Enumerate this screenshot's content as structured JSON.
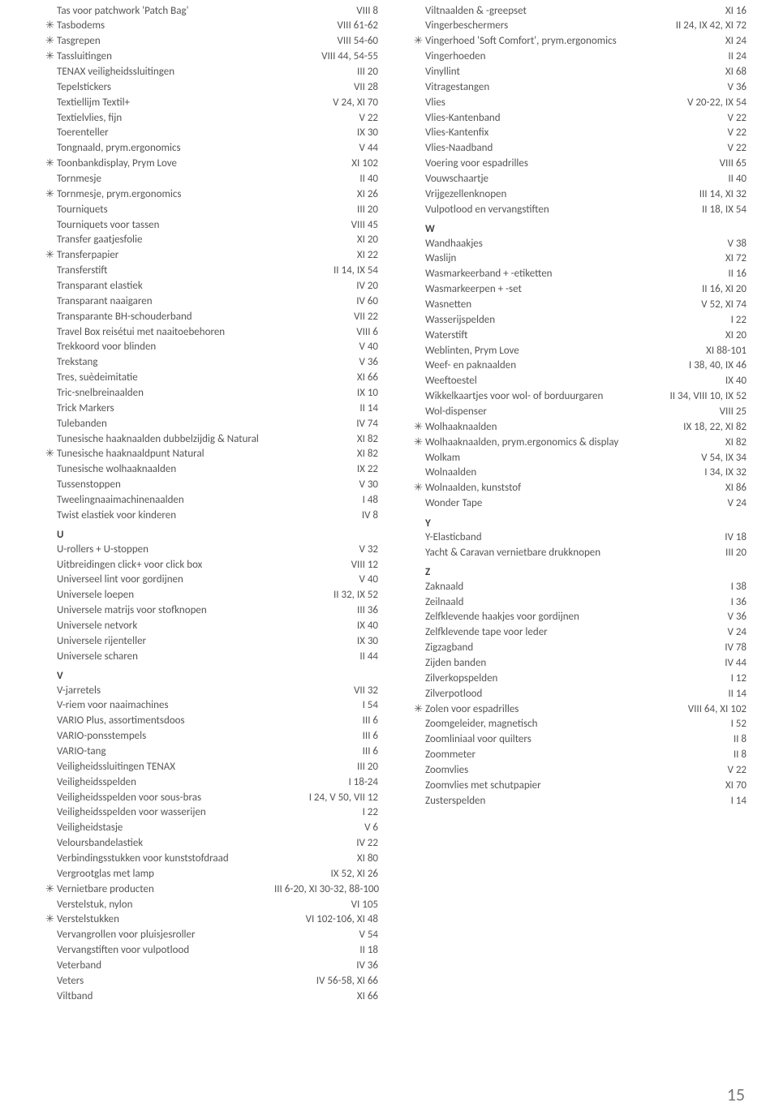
{
  "page_number": "15",
  "asterisk_glyph": "✳",
  "columns": [
    {
      "items": [
        {
          "m": "",
          "l": "Tas voor patchwork 'Patch Bag'",
          "r": "VIII 8"
        },
        {
          "m": "*",
          "l": "Tasbodems",
          "r": "VIII 61-62"
        },
        {
          "m": "*",
          "l": "Tasgrepen",
          "r": "VIII 54-60"
        },
        {
          "m": "*",
          "l": "Tassluitingen",
          "r": "VIII 44, 54-55"
        },
        {
          "m": "",
          "l": "TENAX veiligheidssluitingen",
          "r": "III 20"
        },
        {
          "m": "",
          "l": "Tepelstickers",
          "r": "VII 28"
        },
        {
          "m": "",
          "l": "Textiellijm Textil+",
          "r": "V 24, XI 70"
        },
        {
          "m": "",
          "l": "Textielvlies, fijn",
          "r": "V 22"
        },
        {
          "m": "",
          "l": "Toerenteller",
          "r": "IX 30"
        },
        {
          "m": "",
          "l": "Tongnaald, prym.ergonomics",
          "r": "V 44"
        },
        {
          "m": "*",
          "l": "Toonbankdisplay, Prym Love",
          "r": "XI 102"
        },
        {
          "m": "",
          "l": "Tornmesje",
          "r": "II 40"
        },
        {
          "m": "*",
          "l": "Tornmesje, prym.ergonomics",
          "r": "XI 26"
        },
        {
          "m": "",
          "l": "Tourniquets",
          "r": "III 20"
        },
        {
          "m": "",
          "l": "Tourniquets voor tassen",
          "r": "VIII 45"
        },
        {
          "m": "",
          "l": "Transfer gaatjesfolie",
          "r": "XI 20"
        },
        {
          "m": "*",
          "l": "Transferpapier",
          "r": "XI 22"
        },
        {
          "m": "",
          "l": "Transferstift",
          "r": "II 14, IX 54"
        },
        {
          "m": "",
          "l": "Transparant elastiek",
          "r": "IV 20"
        },
        {
          "m": "",
          "l": "Transparant naaigaren",
          "r": "IV 60"
        },
        {
          "m": "",
          "l": "Transparante BH-schouderband",
          "r": "VII 22"
        },
        {
          "m": "",
          "l": "Travel Box reisétui met naaitoebehoren",
          "r": "VIII 6"
        },
        {
          "m": "",
          "l": "Trekkoord voor blinden",
          "r": "V 40"
        },
        {
          "m": "",
          "l": "Trekstang",
          "r": "V 36"
        },
        {
          "m": "",
          "l": "Tres, suèdeimitatie",
          "r": "XI 66"
        },
        {
          "m": "",
          "l": "Tric-snelbreinaalden",
          "r": "IX 10"
        },
        {
          "m": "",
          "l": "Trick Markers",
          "r": "II 14"
        },
        {
          "m": "",
          "l": "Tulebanden",
          "r": "IV 74"
        },
        {
          "m": "",
          "l": "Tunesische haaknaalden dubbelzijdig & Natural",
          "r": "XI 82"
        },
        {
          "m": "*",
          "l": "Tunesische haaknaaldpunt Natural",
          "r": "XI 82"
        },
        {
          "m": "",
          "l": "Tunesische wolhaaknaalden",
          "r": "IX 22"
        },
        {
          "m": "",
          "l": "Tussenstoppen",
          "r": "V 30"
        },
        {
          "m": "",
          "l": "Tweelingnaaimachinenaalden",
          "r": "I 48"
        },
        {
          "m": "",
          "l": "Twist elastiek voor kinderen",
          "r": "IV 8"
        },
        {
          "section": "U"
        },
        {
          "m": "",
          "l": "U-rollers + U-stoppen",
          "r": "V 32"
        },
        {
          "m": "",
          "l": "Uitbreidingen click+ voor click box",
          "r": "VIII 12"
        },
        {
          "m": "",
          "l": "Universeel lint voor gordijnen",
          "r": "V 40"
        },
        {
          "m": "",
          "l": "Universele loepen",
          "r": "II 32, IX 52"
        },
        {
          "m": "",
          "l": "Universele matrijs voor stofknopen",
          "r": "III 36"
        },
        {
          "m": "",
          "l": "Universele netvork",
          "r": "IX 40"
        },
        {
          "m": "",
          "l": "Universele rijenteller",
          "r": "IX 30"
        },
        {
          "m": "",
          "l": "Universele scharen",
          "r": "II 44"
        },
        {
          "section": "V"
        },
        {
          "m": "",
          "l": "V-jarretels",
          "r": "VII 32"
        },
        {
          "m": "",
          "l": "V-riem voor naaimachines",
          "r": "I 54"
        },
        {
          "m": "",
          "l": "VARIO Plus, assortimentsdoos",
          "r": "III 6"
        },
        {
          "m": "",
          "l": "VARIO-ponsstempels",
          "r": "III 6"
        },
        {
          "m": "",
          "l": "VARIO-tang",
          "r": "III 6"
        },
        {
          "m": "",
          "l": "Veiligheidssluitingen TENAX",
          "r": "III 20"
        },
        {
          "m": "",
          "l": "Veiligheidsspelden",
          "r": "I 18-24"
        },
        {
          "m": "",
          "l": "Veiligheidsspelden voor sous-bras",
          "r": "I 24, V 50, VII 12"
        },
        {
          "m": "",
          "l": "Veiligheidsspelden voor wasserijen",
          "r": "I 22"
        },
        {
          "m": "",
          "l": "Veiligheidstasje",
          "r": "V 6"
        },
        {
          "m": "",
          "l": "Veloursbandelastiek",
          "r": "IV 22"
        },
        {
          "m": "",
          "l": "Verbindingsstukken voor kunststofdraad",
          "r": "XI 80"
        },
        {
          "m": "",
          "l": "Vergrootglas met lamp",
          "r": "IX 52, XI 26"
        },
        {
          "m": "*",
          "l": "Vernietbare producten",
          "r": "III 6-20, XI 30-32, 88-100"
        },
        {
          "m": "",
          "l": "Verstelstuk, nylon",
          "r": "VI 105"
        },
        {
          "m": "*",
          "l": "Verstelstukken",
          "r": "VI 102-106, XI 48"
        },
        {
          "m": "",
          "l": "Vervangrollen voor pluisjesroller",
          "r": "V 54"
        },
        {
          "m": "",
          "l": "Vervangstiften voor vulpotlood",
          "r": "II 18"
        },
        {
          "m": "",
          "l": "Veterband",
          "r": "IV 36"
        },
        {
          "m": "",
          "l": "Veters",
          "r": "IV 56-58, XI 66"
        },
        {
          "m": "",
          "l": "Viltband",
          "r": "XI 66"
        }
      ]
    },
    {
      "items": [
        {
          "m": "",
          "l": "Viltnaalden & -greepset",
          "r": "XI 16"
        },
        {
          "m": "",
          "l": "Vingerbeschermers",
          "r": "II 24, IX 42, XI 72"
        },
        {
          "m": "*",
          "l": "Vingerhoed 'Soft Comfort', prym.ergonomics",
          "r": "XI 24"
        },
        {
          "m": "",
          "l": "Vingerhoeden",
          "r": "II 24"
        },
        {
          "m": "",
          "l": "Vinyllint",
          "r": "XI 68"
        },
        {
          "m": "",
          "l": "Vitragestangen",
          "r": "V 36"
        },
        {
          "m": "",
          "l": "Vlies",
          "r": "V 20-22, IX 54"
        },
        {
          "m": "",
          "l": "Vlies-Kantenband",
          "r": "V 22"
        },
        {
          "m": "",
          "l": "Vlies-Kantenfix",
          "r": "V 22"
        },
        {
          "m": "",
          "l": "Vlies-Naadband",
          "r": "V 22"
        },
        {
          "m": "",
          "l": "Voering voor espadrilles",
          "r": "VIII 65"
        },
        {
          "m": "",
          "l": "Vouwschaartje",
          "r": "II 40"
        },
        {
          "m": "",
          "l": "Vrijgezellenknopen",
          "r": "III 14, XI 32"
        },
        {
          "m": "",
          "l": "Vulpotlood en vervangstiften",
          "r": "II 18, IX 54"
        },
        {
          "section": "W"
        },
        {
          "m": "",
          "l": "Wandhaakjes",
          "r": "V 38"
        },
        {
          "m": "",
          "l": "Waslijn",
          "r": "XI 72"
        },
        {
          "m": "",
          "l": "Wasmarkeerband + -etiketten",
          "r": "II 16"
        },
        {
          "m": "",
          "l": "Wasmarkeerpen + -set",
          "r": "II 16, XI 20"
        },
        {
          "m": "",
          "l": "Wasnetten",
          "r": "V 52, XI 74"
        },
        {
          "m": "",
          "l": "Wasserijspelden",
          "r": "I 22"
        },
        {
          "m": "",
          "l": "Waterstift",
          "r": "XI 20"
        },
        {
          "m": "",
          "l": "Weblinten, Prym Love",
          "r": "XI 88-101"
        },
        {
          "m": "",
          "l": "Weef- en paknaalden",
          "r": "I 38, 40, IX 46"
        },
        {
          "m": "",
          "l": "Weeftoestel",
          "r": "IX 40"
        },
        {
          "m": "",
          "l": "Wikkelkaartjes voor wol- of borduurgaren",
          "r": "II 34, VIII 10, IX 52"
        },
        {
          "m": "",
          "l": "Wol-dispenser",
          "r": "VIII 25"
        },
        {
          "m": "*",
          "l": "Wolhaaknaalden",
          "r": "IX 18, 22, XI 82"
        },
        {
          "m": "*",
          "l": "Wolhaaknaalden, prym.ergonomics & display",
          "r": "XI 82"
        },
        {
          "m": "",
          "l": "Wolkam",
          "r": "V 54, IX 34"
        },
        {
          "m": "",
          "l": "Wolnaalden",
          "r": "I 34, IX 32"
        },
        {
          "m": "*",
          "l": "Wolnaalden, kunststof",
          "r": "XI 86"
        },
        {
          "m": "",
          "l": "Wonder Tape",
          "r": "V 24"
        },
        {
          "section": "Y"
        },
        {
          "m": "",
          "l": "Y-Elasticband",
          "r": "IV 18"
        },
        {
          "m": "",
          "l": "Yacht & Caravan vernietbare drukknopen",
          "r": "III 20"
        },
        {
          "section": "Z"
        },
        {
          "m": "",
          "l": "Zaknaald",
          "r": "I 38"
        },
        {
          "m": "",
          "l": "Zeilnaald",
          "r": "I 36"
        },
        {
          "m": "",
          "l": "Zelfklevende haakjes voor gordijnen",
          "r": "V 36"
        },
        {
          "m": "",
          "l": "Zelfklevende tape voor leder",
          "r": "V 24"
        },
        {
          "m": "",
          "l": "Zigzagband",
          "r": "IV 78"
        },
        {
          "m": "",
          "l": "Zijden banden",
          "r": "IV 44"
        },
        {
          "m": "",
          "l": "Zilverkopspelden",
          "r": "I 12"
        },
        {
          "m": "",
          "l": "Zilverpotlood",
          "r": "II 14"
        },
        {
          "m": "*",
          "l": "Zolen voor espadrilles",
          "r": "VIII 64, XI 102"
        },
        {
          "m": "",
          "l": "Zoomgeleider, magnetisch",
          "r": "I 52"
        },
        {
          "m": "",
          "l": "Zoomliniaal voor quilters",
          "r": "II 8"
        },
        {
          "m": "",
          "l": "Zoommeter",
          "r": "II 8"
        },
        {
          "m": "",
          "l": "Zoomvlies",
          "r": "V 22"
        },
        {
          "m": "",
          "l": "Zoomvlies met schutpapier",
          "r": "XI 70"
        },
        {
          "m": "",
          "l": "Zusterspelden",
          "r": "I 14"
        }
      ]
    }
  ]
}
